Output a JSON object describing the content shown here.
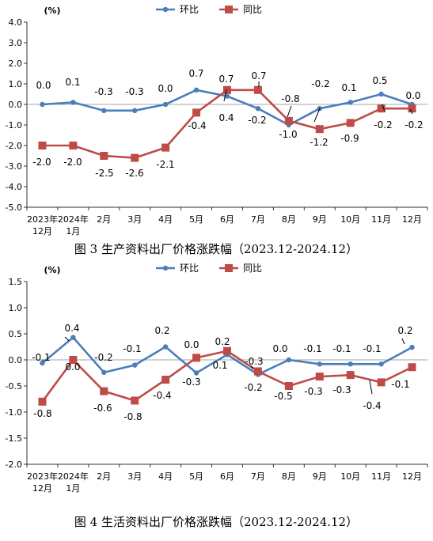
{
  "chart_data": [
    {
      "type": "line",
      "unit_label": "(%)",
      "caption": "图 3 生产资料出厂价格涨跌幅（2023.12-2024.12）",
      "categories": [
        [
          "2023年",
          "12月"
        ],
        [
          "2024年",
          "1月"
        ],
        [
          "2月"
        ],
        [
          "3月"
        ],
        [
          "4月"
        ],
        [
          "5月"
        ],
        [
          "6月"
        ],
        [
          "7月"
        ],
        [
          "8月"
        ],
        [
          "9月"
        ],
        [
          "10月"
        ],
        [
          "11月"
        ],
        [
          "12月"
        ]
      ],
      "ylim": [
        -5.0,
        4.0
      ],
      "yticks": [
        "4.0",
        "3.0",
        "2.0",
        "1.0",
        "0.0",
        "-1.0",
        "-2.0",
        "-3.0",
        "-4.0",
        "-5.0"
      ],
      "series": [
        {
          "name": "环比",
          "color": "#4a7ebb",
          "values": [
            0.0,
            0.1,
            -0.3,
            -0.3,
            0.0,
            0.7,
            0.4,
            -0.2,
            -1.0,
            -0.2,
            0.1,
            0.5,
            0.0
          ],
          "labels": [
            "0.0",
            "0.1",
            "-0.3",
            "-0.3",
            "0.0",
            "0.7",
            "0.4",
            "-0.2",
            "-1.0",
            "-0.2",
            "0.1",
            "0.5",
            "0.0"
          ]
        },
        {
          "name": "同比",
          "color": "#be4b48",
          "values": [
            -2.0,
            -2.0,
            -2.5,
            -2.6,
            -2.1,
            -0.4,
            0.7,
            0.7,
            -0.8,
            -1.2,
            -0.9,
            -0.2,
            -0.2
          ],
          "labels": [
            "-2.0",
            "-2.0",
            "-2.5",
            "-2.6",
            "-2.1",
            "-0.4",
            "0.7",
            "0.7",
            "-0.8",
            "-1.2",
            "-0.9",
            "-0.2",
            "-0.2"
          ]
        }
      ]
    },
    {
      "type": "line",
      "unit_label": "(%)",
      "caption": "图 4 生活资料出厂价格涨跌幅（2023.12-2024.12）",
      "categories": [
        [
          "2023年",
          "12月"
        ],
        [
          "2024年",
          "1月"
        ],
        [
          "2月"
        ],
        [
          "3月"
        ],
        [
          "4月"
        ],
        [
          "5月"
        ],
        [
          "6月"
        ],
        [
          "7月"
        ],
        [
          "8月"
        ],
        [
          "9月"
        ],
        [
          "10月"
        ],
        [
          "11月"
        ],
        [
          "12月"
        ]
      ],
      "ylim": [
        -2.0,
        1.5
      ],
      "yticks": [
        "1.5",
        "1.0",
        "0.5",
        "0.0",
        "-0.5",
        "-1.0",
        "-1.5",
        "-2.0"
      ],
      "series": [
        {
          "name": "环比",
          "color": "#4a7ebb",
          "values": [
            -0.06,
            0.43,
            -0.24,
            -0.1,
            0.25,
            -0.25,
            0.1,
            -0.28,
            0.0,
            -0.08,
            -0.08,
            -0.08,
            0.24
          ],
          "labels": [
            "-0.1",
            "0.4",
            "-0.2",
            "-0.1",
            "0.2",
            "-0.3",
            "0.1",
            "-0.3",
            "0.0",
            "-0.1",
            "-0.1",
            "-0.1",
            "0.2"
          ]
        },
        {
          "name": "同比",
          "color": "#be4b48",
          "values": [
            -0.8,
            0.0,
            -0.6,
            -0.78,
            -0.38,
            0.04,
            0.17,
            -0.22,
            -0.5,
            -0.32,
            -0.29,
            -0.43,
            -0.14
          ],
          "labels": [
            "-0.8",
            "0.0",
            "-0.6",
            "-0.8",
            "-0.4",
            "0.0",
            "0.2",
            "-0.2",
            "-0.5",
            "-0.3",
            "-0.3",
            "-0.4",
            "-0.1"
          ]
        }
      ]
    }
  ]
}
